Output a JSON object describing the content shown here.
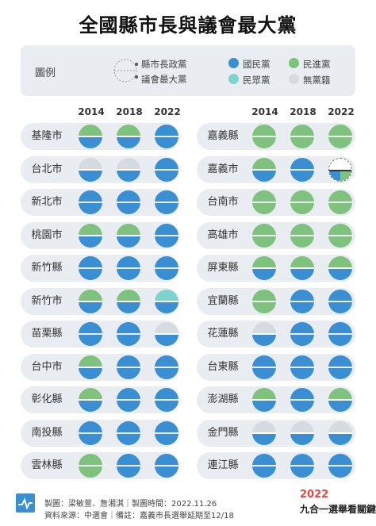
{
  "title": "全國縣市長與議會最大黨",
  "legend": {
    "label": "圖例",
    "mayor": "縣市長政黨",
    "council": "議會最大黨",
    "kmt": "國民黨",
    "dpp": "民進黨",
    "tpp": "民眾黨",
    "ind": "無黨籍"
  },
  "colors": {
    "kmt": "#3a8fd3",
    "dpp": "#7ec27e",
    "tpp": "#7fd3cc",
    "ind": "#d5dbe1",
    "empty": "#ffffff"
  },
  "years": [
    "2014",
    "2018",
    "2022"
  ],
  "left_cities": [
    {
      "name": "基隆市",
      "r": [
        [
          "dpp",
          "kmt"
        ],
        [
          "dpp",
          "kmt"
        ],
        [
          "kmt",
          "kmt"
        ]
      ]
    },
    {
      "name": "台北市",
      "r": [
        [
          "ind",
          "kmt"
        ],
        [
          "ind",
          "kmt"
        ],
        [
          "kmt",
          "kmt"
        ]
      ]
    },
    {
      "name": "新北市",
      "r": [
        [
          "kmt",
          "kmt"
        ],
        [
          "kmt",
          "kmt"
        ],
        [
          "kmt",
          "kmt"
        ]
      ]
    },
    {
      "name": "桃園市",
      "r": [
        [
          "dpp",
          "kmt"
        ],
        [
          "dpp",
          "kmt"
        ],
        [
          "kmt",
          "kmt"
        ]
      ]
    },
    {
      "name": "新竹縣",
      "r": [
        [
          "kmt",
          "kmt"
        ],
        [
          "kmt",
          "kmt"
        ],
        [
          "kmt",
          "kmt"
        ]
      ]
    },
    {
      "name": "新竹市",
      "r": [
        [
          "dpp",
          "kmt"
        ],
        [
          "dpp",
          "kmt"
        ],
        [
          "tpp",
          "kmt"
        ]
      ]
    },
    {
      "name": "苗栗縣",
      "r": [
        [
          "kmt",
          "kmt"
        ],
        [
          "kmt",
          "kmt"
        ],
        [
          "ind",
          "kmt"
        ]
      ]
    },
    {
      "name": "台中市",
      "r": [
        [
          "dpp",
          "kmt"
        ],
        [
          "kmt",
          "kmt"
        ],
        [
          "kmt",
          "kmt"
        ]
      ]
    },
    {
      "name": "彰化縣",
      "r": [
        [
          "dpp",
          "kmt"
        ],
        [
          "kmt",
          "kmt"
        ],
        [
          "kmt",
          "kmt"
        ]
      ]
    },
    {
      "name": "南投縣",
      "r": [
        [
          "kmt",
          "kmt"
        ],
        [
          "kmt",
          "kmt"
        ],
        [
          "kmt",
          "kmt"
        ]
      ]
    },
    {
      "name": "雲林縣",
      "r": [
        [
          "dpp",
          "dpp"
        ],
        [
          "kmt",
          "kmt"
        ],
        [
          "kmt",
          "kmt"
        ]
      ]
    }
  ],
  "right_cities": [
    {
      "name": "嘉義縣",
      "r": [
        [
          "dpp",
          "dpp"
        ],
        [
          "dpp",
          "dpp"
        ],
        [
          "dpp",
          "dpp"
        ]
      ]
    },
    {
      "name": "嘉義市",
      "r": [
        [
          "dpp",
          "kmt"
        ],
        [
          "kmt",
          "kmt"
        ],
        [
          "empty",
          "split"
        ]
      ]
    },
    {
      "name": "台南市",
      "r": [
        [
          "dpp",
          "dpp"
        ],
        [
          "dpp",
          "dpp"
        ],
        [
          "dpp",
          "dpp"
        ]
      ]
    },
    {
      "name": "高雄市",
      "r": [
        [
          "dpp",
          "dpp"
        ],
        [
          "dpp",
          "dpp"
        ],
        [
          "dpp",
          "dpp"
        ]
      ]
    },
    {
      "name": "屏東縣",
      "r": [
        [
          "dpp",
          "kmt"
        ],
        [
          "dpp",
          "kmt"
        ],
        [
          "dpp",
          "kmt"
        ]
      ]
    },
    {
      "name": "宜蘭縣",
      "r": [
        [
          "dpp",
          "dpp"
        ],
        [
          "kmt",
          "kmt"
        ],
        [
          "kmt",
          "kmt"
        ]
      ]
    },
    {
      "name": "花蓮縣",
      "r": [
        [
          "ind",
          "kmt"
        ],
        [
          "kmt",
          "kmt"
        ],
        [
          "kmt",
          "kmt"
        ]
      ]
    },
    {
      "name": "台東縣",
      "r": [
        [
          "kmt",
          "kmt"
        ],
        [
          "kmt",
          "kmt"
        ],
        [
          "kmt",
          "kmt"
        ]
      ]
    },
    {
      "name": "澎湖縣",
      "r": [
        [
          "dpp",
          "kmt"
        ],
        [
          "kmt",
          "kmt"
        ],
        [
          "dpp",
          "kmt"
        ]
      ]
    },
    {
      "name": "金門縣",
      "r": [
        [
          "ind",
          "kmt"
        ],
        [
          "ind",
          "kmt"
        ],
        [
          "ind",
          "kmt"
        ]
      ]
    },
    {
      "name": "連江縣",
      "r": [
        [
          "kmt",
          "kmt"
        ],
        [
          "kmt",
          "kmt"
        ],
        [
          "kmt",
          "kmt"
        ]
      ]
    }
  ],
  "footer": {
    "line1": "製圖：梁敏萱、詹湘淇｜製圖時間：2022.11.26",
    "line2": "資料來源：中選會｜備註：嘉義市長選舉延期至12/18"
  },
  "brand": {
    "year": "2022",
    "name": "九合一選舉看關鍵"
  }
}
